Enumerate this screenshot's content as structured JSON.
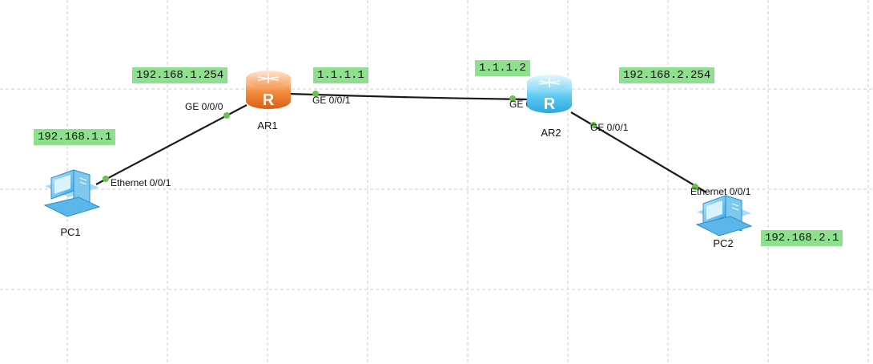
{
  "devices": {
    "pc1": {
      "label": "PC1",
      "icon": "pc-icon",
      "color": "#4fb7ee"
    },
    "ar1": {
      "label": "AR1",
      "icon": "router-icon",
      "color": "#f07a2c"
    },
    "ar2": {
      "label": "AR2",
      "icon": "router-icon",
      "color": "#4fc3f0"
    },
    "pc2": {
      "label": "PC2",
      "icon": "pc-icon",
      "color": "#4fb7ee"
    }
  },
  "ports": {
    "pc1_eth": "Ethernet 0/0/1",
    "ar1_ge000": "GE 0/0/0",
    "ar1_ge001": "GE 0/0/1",
    "ar2_ge000": "GE 0/0/0",
    "ar2_ge001": "GE 0/0/1",
    "pc2_eth": "Ethernet 0/0/1"
  },
  "ip_labels": {
    "pc1": "192.168.1.1",
    "ar1_lan": "192.168.1.254",
    "ar1_wan": "1.1.1.1",
    "ar2_wan": "1.1.1.2",
    "ar2_lan": "192.168.2.254",
    "pc2": "192.168.2.1"
  },
  "links": [
    {
      "from": "PC1",
      "to": "AR1"
    },
    {
      "from": "AR1",
      "to": "AR2"
    },
    {
      "from": "AR2",
      "to": "PC2"
    }
  ],
  "colors": {
    "label_background": "#8ee08e",
    "port_dot": "#6cc24a",
    "link": "#1a1a1a",
    "grid": "#cfcfcf"
  }
}
